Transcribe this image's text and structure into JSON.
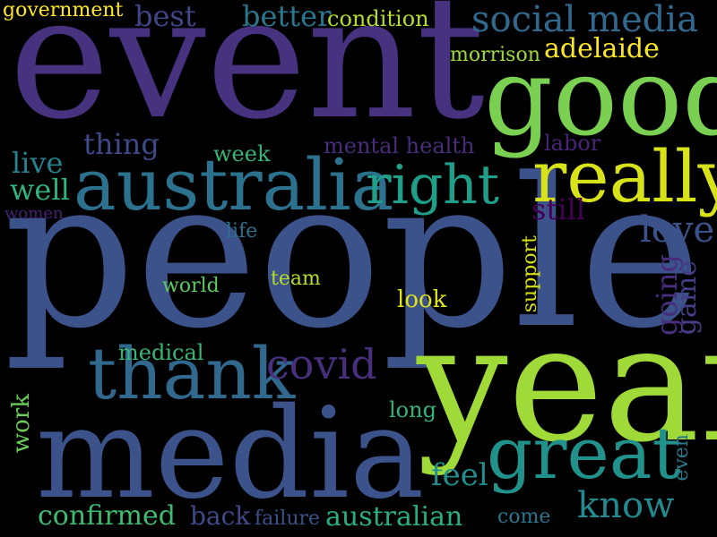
{
  "word_cloud": {
    "words": [
      {
        "text": "people",
        "color": "#3b528b"
      },
      {
        "text": "event",
        "color": "#46327e"
      },
      {
        "text": "media",
        "color": "#3b528b"
      },
      {
        "text": "year",
        "color": "#a0da39"
      },
      {
        "text": "good",
        "color": "#7ad151"
      },
      {
        "text": "australia",
        "color": "#2c728e"
      },
      {
        "text": "really",
        "color": "#d8e219"
      },
      {
        "text": "thank",
        "color": "#31688e"
      },
      {
        "text": "great",
        "color": "#21918c"
      },
      {
        "text": "right",
        "color": "#1f9e89"
      },
      {
        "text": "social media",
        "color": "#31688e"
      },
      {
        "text": "adelaide",
        "color": "#fde725"
      },
      {
        "text": "covid",
        "color": "#472f7d"
      },
      {
        "text": "love",
        "color": "#3b528b"
      },
      {
        "text": "know",
        "color": "#23898e"
      },
      {
        "text": "government",
        "color": "#fde725"
      },
      {
        "text": "best",
        "color": "#404688"
      },
      {
        "text": "better",
        "color": "#2a788e"
      },
      {
        "text": "condition",
        "color": "#b5de2b"
      },
      {
        "text": "morrison",
        "color": "#a0da39"
      },
      {
        "text": "thing",
        "color": "#3e4a89"
      },
      {
        "text": "mental health",
        "color": "#472d7b"
      },
      {
        "text": "labor",
        "color": "#482576"
      },
      {
        "text": "week",
        "color": "#35b779"
      },
      {
        "text": "live",
        "color": "#26828e"
      },
      {
        "text": "well",
        "color": "#2fb47c"
      },
      {
        "text": "women",
        "color": "#482173"
      },
      {
        "text": "still",
        "color": "#440154"
      },
      {
        "text": "life",
        "color": "#2d708e"
      },
      {
        "text": "support",
        "color": "#d8e219"
      },
      {
        "text": "world",
        "color": "#5ec962"
      },
      {
        "text": "team",
        "color": "#b5de2b"
      },
      {
        "text": "look",
        "color": "#dfe318"
      },
      {
        "text": "going",
        "color": "#472d7b"
      },
      {
        "text": "game",
        "color": "#433e85"
      },
      {
        "text": "medical",
        "color": "#35b779"
      },
      {
        "text": "work",
        "color": "#6ccd5a"
      },
      {
        "text": "long",
        "color": "#31b57b"
      },
      {
        "text": "feel",
        "color": "#218f8d"
      },
      {
        "text": "even",
        "color": "#2a788e"
      },
      {
        "text": "confirmed",
        "color": "#3fbc73"
      },
      {
        "text": "back",
        "color": "#3e4989"
      },
      {
        "text": "failure",
        "color": "#3b528b"
      },
      {
        "text": "australian",
        "color": "#29af7f"
      },
      {
        "text": "come",
        "color": "#2a778e"
      }
    ]
  }
}
